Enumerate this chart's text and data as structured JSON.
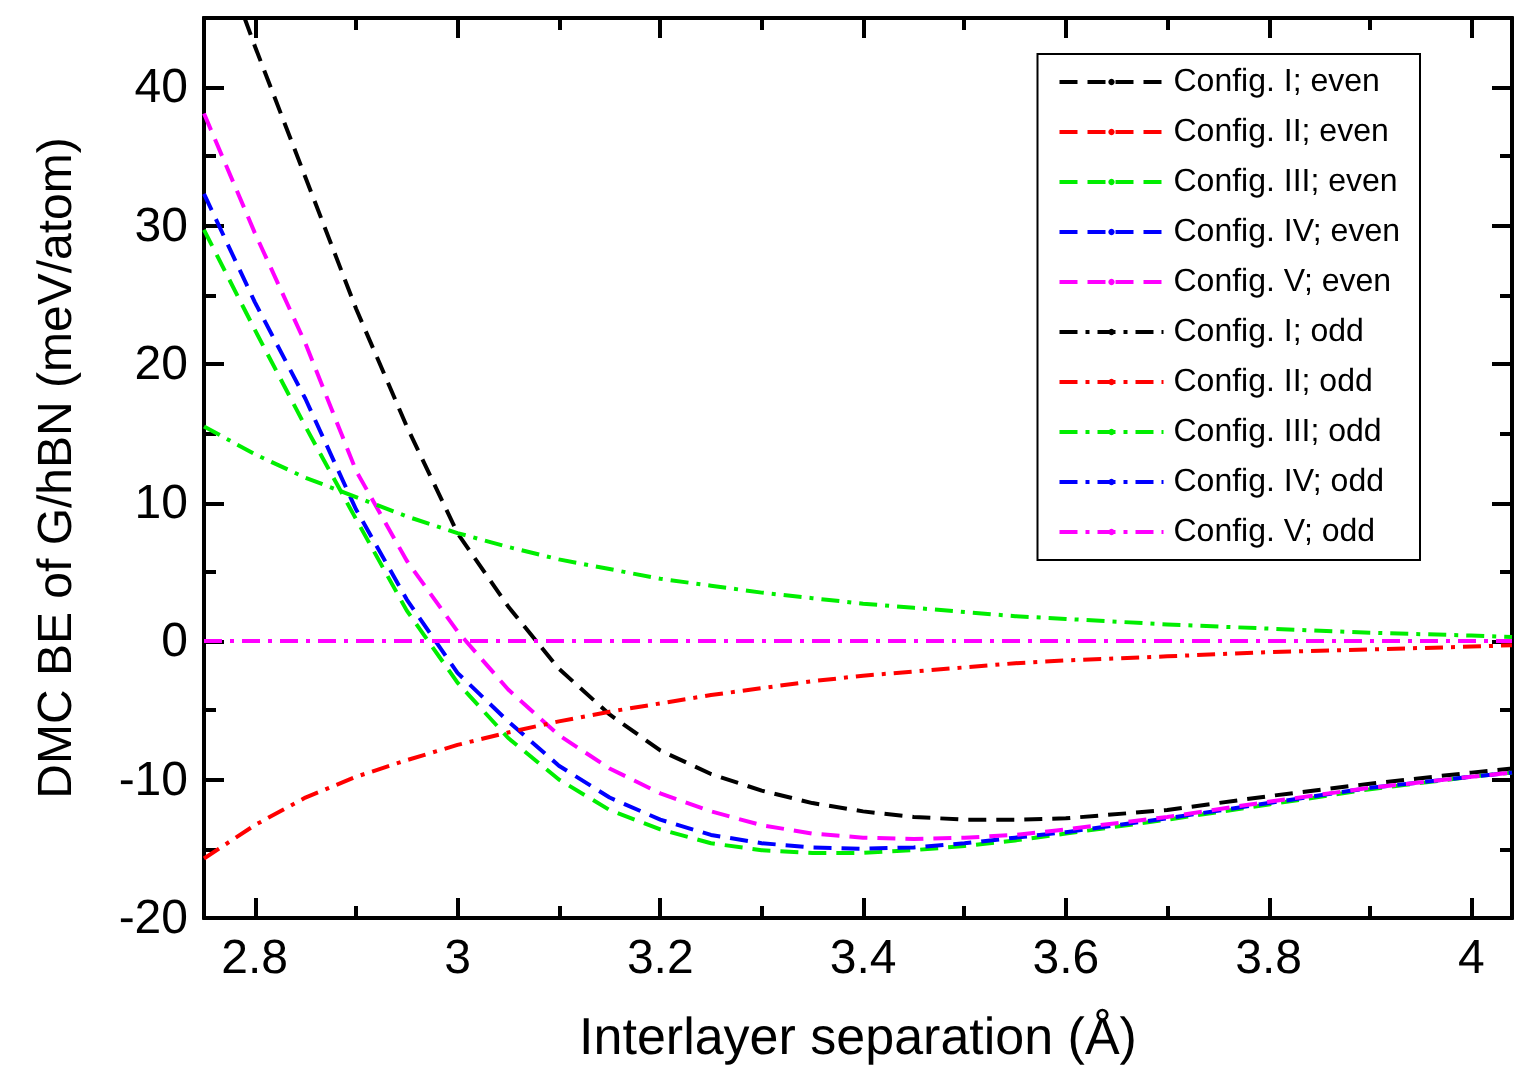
{
  "chart_data": {
    "type": "line",
    "xlabel": "Interlayer separation (Å)",
    "ylabel": "DMC BE of G/hBN (meV/atom)",
    "xlim": [
      2.75,
      4.04
    ],
    "ylim": [
      -20,
      45
    ],
    "xticks": [
      2.8,
      3,
      3.2,
      3.4,
      3.6,
      3.8,
      4
    ],
    "yticks": [
      -20,
      -10,
      0,
      10,
      20,
      30,
      40
    ],
    "grid": false,
    "legend": "top right",
    "marker": "none",
    "x": [
      2.75,
      2.8,
      2.85,
      2.9,
      2.95,
      3.0,
      3.05,
      3.1,
      3.15,
      3.2,
      3.25,
      3.3,
      3.35,
      3.4,
      3.45,
      3.5,
      3.55,
      3.6,
      3.7,
      3.8,
      3.9,
      4.0,
      4.04
    ],
    "series": [
      {
        "name": "Config. I; even",
        "color": "#000000",
        "line_style": "dashed",
        "x": [
          2.79,
          2.8,
          2.85,
          2.9,
          2.95,
          3.0,
          3.05,
          3.1,
          3.15,
          3.2,
          3.25,
          3.3,
          3.35,
          3.4,
          3.45,
          3.5,
          3.55,
          3.6,
          3.7,
          3.8,
          3.9,
          4.0,
          4.04
        ],
        "values": [
          45,
          43,
          33.5,
          24,
          15.5,
          7.8,
          2.5,
          -2.0,
          -5.3,
          -7.9,
          -9.6,
          -10.8,
          -11.7,
          -12.3,
          -12.7,
          -12.9,
          -12.9,
          -12.8,
          -12.2,
          -11.2,
          -10.3,
          -9.5,
          -9.2
        ]
      },
      {
        "name": "Config. II; even",
        "color": "#ff0000",
        "line_style": "dashed",
        "values": [
          null,
          null,
          null,
          null,
          null,
          null,
          null,
          null,
          null,
          null,
          null,
          null,
          null,
          null,
          null,
          null,
          null,
          null,
          null,
          null,
          null,
          null,
          null
        ]
      },
      {
        "name": "Config. III; even",
        "color": "#00ee00",
        "line_style": "dashed",
        "values": [
          29.7,
          22.5,
          15.5,
          8.8,
          2.2,
          -3.0,
          -7.0,
          -10.0,
          -12.2,
          -13.6,
          -14.6,
          -15.1,
          -15.3,
          -15.3,
          -15.1,
          -14.8,
          -14.4,
          -13.9,
          -12.9,
          -11.8,
          -10.7,
          -9.8,
          -9.5
        ]
      },
      {
        "name": "Config. IV; even",
        "color": "#0000ff",
        "line_style": "dashed",
        "values": [
          32.3,
          24.5,
          17.5,
          9.5,
          3.0,
          -2.3,
          -5.8,
          -9.0,
          -11.3,
          -12.9,
          -14.0,
          -14.6,
          -14.9,
          -15.0,
          -14.9,
          -14.6,
          -14.2,
          -13.8,
          -12.8,
          -11.7,
          -10.6,
          -9.8,
          -9.5
        ]
      },
      {
        "name": "Config. V; even",
        "color": "#ff00ff",
        "line_style": "dashed",
        "values": [
          38.1,
          29.5,
          21.5,
          12.3,
          5.8,
          0.7,
          -3.5,
          -6.8,
          -9.2,
          -11.0,
          -12.3,
          -13.3,
          -13.9,
          -14.2,
          -14.3,
          -14.2,
          -14.0,
          -13.6,
          -12.7,
          -11.6,
          -10.6,
          -9.8,
          -9.5
        ]
      },
      {
        "name": "Config. I; odd",
        "color": "#000000",
        "line_style": "dashdot",
        "values": [
          null,
          null,
          null,
          null,
          null,
          null,
          null,
          null,
          null,
          null,
          null,
          null,
          null,
          null,
          null,
          null,
          null,
          null,
          null,
          null,
          null,
          null,
          null
        ]
      },
      {
        "name": "Config. II; odd",
        "color": "#ff0000",
        "line_style": "dashdot",
        "values": [
          -15.7,
          -13.3,
          -11.3,
          -9.8,
          -8.6,
          -7.5,
          -6.6,
          -5.8,
          -5.1,
          -4.5,
          -3.9,
          -3.4,
          -2.9,
          -2.5,
          -2.2,
          -1.9,
          -1.6,
          -1.4,
          -1.1,
          -0.8,
          -0.6,
          -0.4,
          -0.3
        ]
      },
      {
        "name": "Config. III; odd",
        "color": "#00ee00",
        "line_style": "dashdot",
        "values": [
          15.5,
          13.5,
          11.8,
          10.4,
          9.0,
          7.8,
          6.8,
          5.9,
          5.2,
          4.5,
          4.0,
          3.5,
          3.1,
          2.7,
          2.4,
          2.1,
          1.8,
          1.6,
          1.2,
          0.9,
          0.6,
          0.4,
          0.3
        ]
      },
      {
        "name": "Config. IV; odd",
        "color": "#0000ff",
        "line_style": "dashdot",
        "values": [
          null,
          null,
          null,
          null,
          null,
          null,
          null,
          null,
          null,
          null,
          null,
          null,
          null,
          null,
          null,
          null,
          null,
          null,
          null,
          null,
          null,
          null,
          null
        ]
      },
      {
        "name": "Config. V; odd",
        "color": "#ff00ff",
        "line_style": "dashdot",
        "values": [
          0,
          0,
          0,
          0,
          0,
          0,
          0,
          0,
          0,
          0,
          0,
          0,
          0,
          0,
          0,
          0,
          0,
          0,
          0,
          0,
          0,
          0,
          0
        ]
      }
    ]
  }
}
